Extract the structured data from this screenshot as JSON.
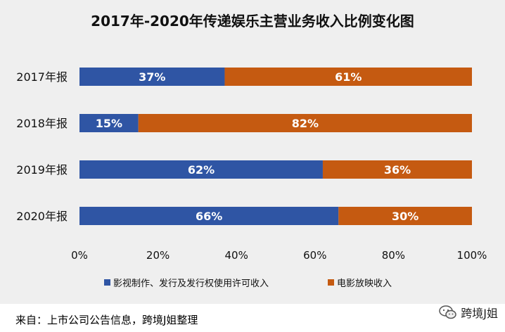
{
  "chart_data": {
    "type": "bar",
    "orientation": "horizontal",
    "stacked": true,
    "title": "2017年-2020年传递娱乐主营业务收入比例变化图",
    "categories": [
      "2017年报",
      "2018年报",
      "2019年报",
      "2020年报"
    ],
    "series": [
      {
        "name": "影视制作、发行及发行权使用许可收入",
        "values": [
          37,
          15,
          62,
          66
        ],
        "labels": [
          "37%",
          "15%",
          "62%",
          "66%"
        ],
        "color": "#2f55a4"
      },
      {
        "name": "电影放映收入",
        "values": [
          61,
          82,
          36,
          30
        ],
        "labels": [
          "61%",
          "82%",
          "36%",
          "30%"
        ],
        "color": "#c55a11"
      }
    ],
    "xlim": [
      0,
      100
    ],
    "xticks": [
      "0%",
      "20%",
      "40%",
      "60%",
      "80%",
      "100%"
    ],
    "xlabel": "",
    "ylabel": "",
    "grid": false,
    "legend_position": "bottom"
  },
  "footer": {
    "source": "来自：上市公司公告信息，跨境J姐整理",
    "watermark_text": "跨境J姐",
    "watermark_icon": "wechat-icon"
  }
}
